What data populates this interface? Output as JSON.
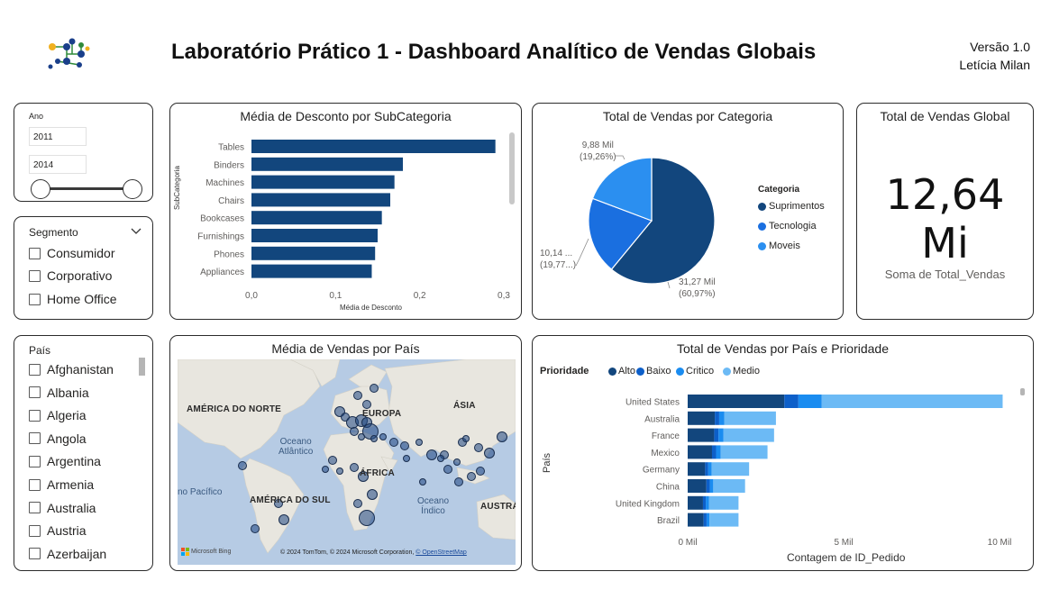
{
  "header": {
    "title": "Laboratório Prático 1 - Dashboard Analítico de Vendas Globais",
    "version": "Versão 1.0",
    "author": "Letícia Milan"
  },
  "year_slicer": {
    "label": "Ano",
    "start": "2011",
    "end": "2014"
  },
  "segment_slicer": {
    "label": "Segmento",
    "items": [
      "Consumidor",
      "Corporativo",
      "Home Office"
    ]
  },
  "country_slicer": {
    "label": "País",
    "items": [
      "Afghanistan",
      "Albania",
      "Algeria",
      "Angola",
      "Argentina",
      "Armenia",
      "Australia",
      "Austria",
      "Azerbaijan"
    ]
  },
  "discount_chart": {
    "title": "Média de Desconto por SubCategoria",
    "xlabel": "Média de Desconto",
    "ylabel": "SubCategoria",
    "ticks": [
      "0,0",
      "0,1",
      "0,2",
      "0,3"
    ]
  },
  "category_chart": {
    "title": "Total de Vendas por Categoria",
    "legend_title": "Categoria",
    "labels": [
      {
        "value": "31,27 Mil",
        "pct": "(60,97%)"
      },
      {
        "value": "10,14 ...",
        "pct": "(19,77...)"
      },
      {
        "value": "9,88 Mil",
        "pct": "(19,26%)"
      }
    ]
  },
  "kpi": {
    "title": "Total de Vendas Global",
    "value": "12,64",
    "unit": "Mi",
    "caption": "Soma de Total_Vendas"
  },
  "map": {
    "title": "Média de Vendas por País",
    "labels": [
      "AMÉRICA DO NORTE",
      "EUROPA",
      "ÁSIA",
      "ÁFRICA",
      "AMÉRICA DO SUL",
      "AUSTRÁ"
    ],
    "oceans": [
      "Oceano",
      "Atlântico",
      "no Pacífico",
      "Oceano",
      "Índico"
    ],
    "brand": "Microsoft Bing",
    "copyright": "© 2024 TomTom, © 2024 Microsoft Corporation,",
    "osm": "© OpenStreetMap"
  },
  "priority_chart": {
    "title": "Total de Vendas por País e Prioridade",
    "legend_title": "Prioridade",
    "xlabel": "Contagem de ID_Pedido",
    "ylabel": "País",
    "ticks": [
      "0 Mil",
      "5 Mil",
      "10 Mil"
    ]
  },
  "colors": {
    "navy": "#12467d",
    "blue": "#0d5fc9",
    "sky": "#4aa8f0",
    "light": "#7fc2f7",
    "mid_blue": "#1a6fe0"
  },
  "chart_data": [
    {
      "type": "bar",
      "title": "Média de Desconto por SubCategoria",
      "xlabel": "Média de Desconto",
      "ylabel": "SubCategoria",
      "categories": [
        "Tables",
        "Binders",
        "Machines",
        "Chairs",
        "Bookcases",
        "Furnishings",
        "Phones",
        "Appliances"
      ],
      "values": [
        0.29,
        0.18,
        0.17,
        0.165,
        0.155,
        0.15,
        0.147,
        0.143
      ],
      "xlim": [
        0,
        0.3
      ],
      "color": "#12467d"
    },
    {
      "type": "pie",
      "title": "Total de Vendas por Categoria",
      "categories": [
        "Suprimentos",
        "Tecnologia",
        "Moveis"
      ],
      "values": [
        31.27,
        10.14,
        9.88
      ],
      "colors": [
        "#12467d",
        "#1a6fe0",
        "#2b8ff0"
      ],
      "legend": "right"
    },
    {
      "type": "bar",
      "stacked": true,
      "title": "Total de Vendas por País e Prioridade",
      "xlabel": "Contagem de ID_Pedido",
      "ylabel": "País",
      "categories": [
        "United States",
        "Australia",
        "France",
        "Mexico",
        "Germany",
        "China",
        "United Kingdom",
        "Brazil"
      ],
      "series": [
        {
          "name": "Alto",
          "values": [
            3100,
            870,
            850,
            780,
            560,
            600,
            490,
            510
          ],
          "color": "#12467d"
        },
        {
          "name": "Baixo",
          "values": [
            450,
            140,
            140,
            130,
            100,
            110,
            90,
            95
          ],
          "color": "#0d5fc9"
        },
        {
          "name": "Critico",
          "values": [
            750,
            160,
            160,
            150,
            110,
            110,
            100,
            95
          ],
          "color": "#1a8cf0"
        },
        {
          "name": "Medio",
          "values": [
            5800,
            1660,
            1620,
            1500,
            1200,
            1020,
            950,
            930
          ],
          "color": "#6cbaf5"
        }
      ],
      "xlim": [
        0,
        10000
      ],
      "legend": "top-left"
    }
  ]
}
